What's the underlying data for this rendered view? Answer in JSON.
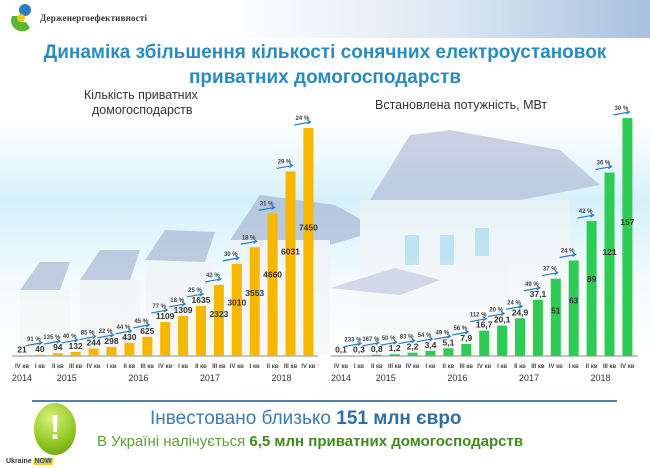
{
  "header": {
    "org_name": "Держенергоефективності",
    "title_line1": "Динаміка збільшення кількості сонячних електроустановок",
    "title_line2": "приватних домогосподарств"
  },
  "chart_data": [
    {
      "type": "bar",
      "title": "Кількість приватних домогосподарств",
      "title_line1": "Кількість приватних",
      "title_line2": "домогосподарств",
      "color": "#f5b700",
      "categories": [
        "IV кв 2014",
        "I кв 2015",
        "II кв 2015",
        "III кв 2015",
        "IV кв 2015",
        "I кв 2016",
        "II кв 2016",
        "III кв 2016",
        "IV кв 2016",
        "I кв 2017",
        "II кв 2017",
        "III кв 2017",
        "IV кв 2017",
        "I кв 2018",
        "II кв 2018",
        "III кв 2018",
        "IV кв 2018"
      ],
      "quarter_labels": [
        "IV кв",
        "I кв",
        "II кв",
        "III кв",
        "IV кв",
        "I кв",
        "II кв",
        "III кв",
        "IV кв",
        "I кв",
        "II кв",
        "III кв",
        "IV кв",
        "I кв",
        "II кв",
        "III кв",
        "IV кв"
      ],
      "year_labels": [
        "2014",
        "2015",
        "2016",
        "2017",
        "2018"
      ],
      "values": [
        21,
        40,
        94,
        132,
        244,
        298,
        430,
        625,
        1109,
        1309,
        1635,
        2323,
        3010,
        3553,
        4660,
        6031,
        7450
      ],
      "value_labels": [
        "21",
        "40",
        "94",
        "132",
        "244",
        "298",
        "430",
        "625",
        "1109",
        "1309",
        "1635",
        "2323",
        "3010",
        "3553",
        "4660",
        "6031",
        "7450"
      ],
      "growth_labels": [
        "91 %",
        "135 %",
        "40 %",
        "85 %",
        "22 %",
        "44 %",
        "45 %",
        "77 %",
        "18 %",
        "25 %",
        "42 %",
        "30 %",
        "18 %",
        "31 %",
        "29 %",
        "24 %"
      ],
      "ylim": [
        0,
        7450
      ]
    },
    {
      "type": "bar",
      "title": "Встановлена потужність, МВт",
      "color": "#2ecc55",
      "categories": [
        "IV кв 2014",
        "I кв 2015",
        "II кв 2015",
        "III кв 2015",
        "IV кв 2015",
        "I кв 2016",
        "II кв 2016",
        "III кв 2016",
        "IV кв 2016",
        "I кв 2017",
        "II кв 2017",
        "III кв 2017",
        "IV кв 2017",
        "I кв 2018",
        "II кв 2018",
        "III кв 2018",
        "IV кв 2018"
      ],
      "quarter_labels": [
        "IV кв",
        "I кв",
        "II кв",
        "III кв",
        "IV кв",
        "I кв",
        "II кв",
        "III кв",
        "IV кв",
        "I кв",
        "II кв",
        "III кв",
        "IV кв",
        "I кв",
        "II кв",
        "III кв",
        "IV кв"
      ],
      "year_labels": [
        "2014",
        "2015",
        "2016",
        "2017",
        "2018"
      ],
      "values": [
        0.1,
        0.3,
        0.8,
        1.2,
        2.2,
        3.4,
        5.1,
        7.9,
        16.7,
        20.1,
        24.9,
        37.1,
        51,
        63,
        89,
        121,
        157
      ],
      "value_labels": [
        "0,1",
        "0,3",
        "0,8",
        "1,2",
        "2,2",
        "3,4",
        "5,1",
        "7,9",
        "16,7",
        "20,1",
        "24,9",
        "37,1",
        "51",
        "63",
        "89",
        "121",
        "157"
      ],
      "growth_labels": [
        "233 %",
        "167 %",
        "50 %",
        "83 %",
        "54 %",
        "49 %",
        "56 %",
        "112 %",
        "20 %",
        "24 %",
        "49 %",
        "37 %",
        "24 %",
        "42 %",
        "36 %",
        "30 %"
      ],
      "ylim": [
        0,
        157
      ]
    }
  ],
  "footer": {
    "invest_prefix": "Інвестовано близько ",
    "invest_value": "151 млн євро",
    "hh_prefix": "В Україні налічується ",
    "hh_value": "6,5 млн приватних домогосподарств",
    "badge": "Ukraine NOW"
  }
}
